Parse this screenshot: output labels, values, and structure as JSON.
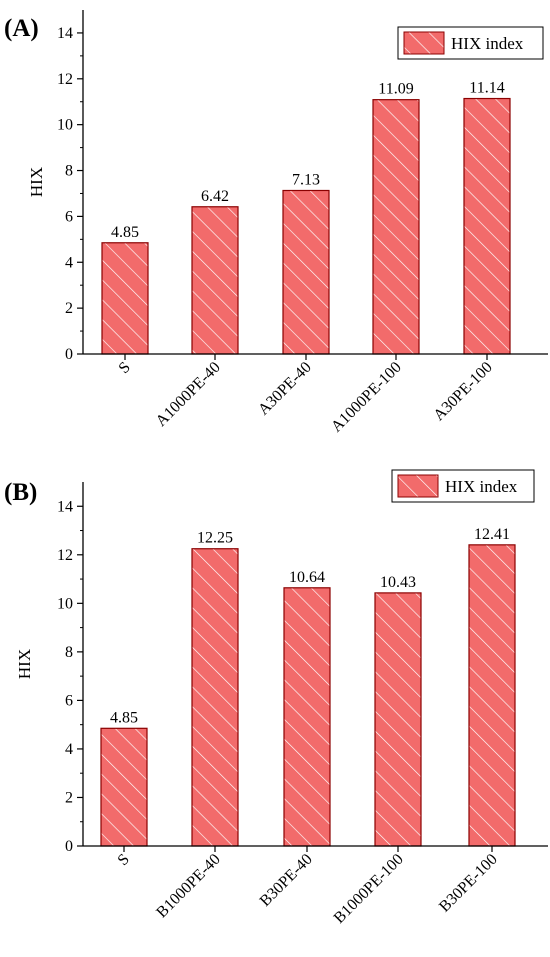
{
  "colors": {
    "bar_fill": "#f26b6b",
    "bar_stroke": "#8b0000",
    "hatch": "#ffffff",
    "axis": "#000000"
  },
  "chart_data": [
    {
      "panel_label": "(A)",
      "type": "bar",
      "ylabel": "HIX",
      "xlabel": "",
      "ylim": [
        0,
        15
      ],
      "yticks": [
        0,
        2,
        4,
        6,
        8,
        10,
        12,
        14
      ],
      "categories": [
        "S",
        "A1000PE-40",
        "A30PE-40",
        "A1000PE-100",
        "A30PE-100"
      ],
      "values": [
        4.85,
        6.42,
        7.13,
        11.09,
        11.14
      ],
      "value_labels": [
        "4.85",
        "6.42",
        "7.13",
        "11.09",
        "11.14"
      ],
      "legend": [
        "HIX index"
      ],
      "legend_position": "top-right",
      "bar_pattern": "diagonal-hatch",
      "grid": false
    },
    {
      "panel_label": "(B)",
      "type": "bar",
      "ylabel": "HIX",
      "xlabel": "",
      "ylim": [
        0,
        15
      ],
      "yticks": [
        0,
        2,
        4,
        6,
        8,
        10,
        12,
        14
      ],
      "categories": [
        "S",
        "B1000PE-40",
        "B30PE-40",
        "B1000PE-100",
        "B30PE-100"
      ],
      "values": [
        4.85,
        12.25,
        10.64,
        10.43,
        12.41
      ],
      "value_labels": [
        "4.85",
        "12.25",
        "10.64",
        "10.43",
        "12.41"
      ],
      "legend": [
        "HIX index"
      ],
      "legend_position": "top-right",
      "bar_pattern": "diagonal-hatch",
      "grid": false
    }
  ]
}
